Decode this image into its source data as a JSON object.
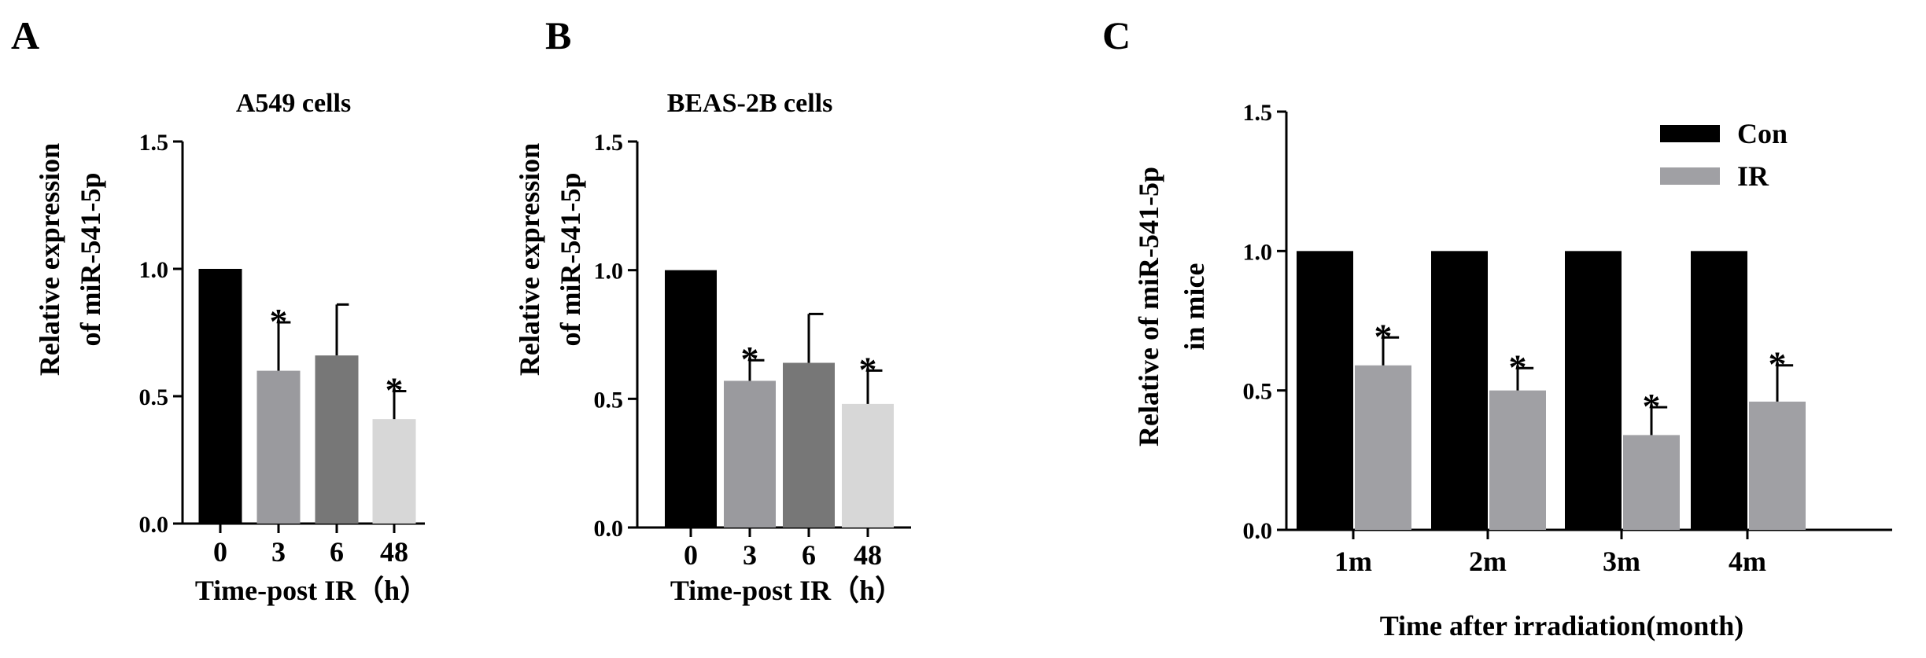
{
  "panels": [
    {
      "letter": "A"
    },
    {
      "letter": "B"
    },
    {
      "letter": "C"
    }
  ],
  "chart_data": [
    {
      "type": "bar",
      "title": "A549 cells",
      "xlabel": "Time-post IR（h）",
      "ylabel_lines": [
        "Relative expression",
        "of miR-541-5p"
      ],
      "categories": [
        "0",
        "3",
        "6",
        "48"
      ],
      "values": [
        1.0,
        0.6,
        0.66,
        0.41
      ],
      "errors": [
        0,
        0.19,
        0.2,
        0.11
      ],
      "significant": [
        false,
        true,
        false,
        true
      ],
      "significance_symbol": "*",
      "bar_colors": [
        "#000000",
        "#9a9a9e",
        "#777777",
        "#d7d7d7"
      ],
      "ylim": [
        0,
        1.5
      ],
      "yticks": [
        0.0,
        0.5,
        1.0,
        1.5
      ],
      "ytick_labels": [
        "0.0",
        "0.5",
        "1.0",
        "1.5"
      ]
    },
    {
      "type": "bar",
      "title": "BEAS-2B cells",
      "xlabel": "Time-post IR（h）",
      "ylabel_lines": [
        "Relative expression",
        "of miR-541-5p"
      ],
      "categories": [
        "0",
        "3",
        "6",
        "48"
      ],
      "values": [
        1.0,
        0.57,
        0.64,
        0.48
      ],
      "errors": [
        0,
        0.08,
        0.19,
        0.13
      ],
      "significant": [
        false,
        true,
        false,
        true
      ],
      "significance_symbol": "*",
      "bar_colors": [
        "#000000",
        "#9a9a9e",
        "#777777",
        "#d7d7d7"
      ],
      "ylim": [
        0,
        1.5
      ],
      "yticks": [
        0.0,
        0.5,
        1.0,
        1.5
      ],
      "ytick_labels": [
        "0.0",
        "0.5",
        "1.0",
        "1.5"
      ]
    },
    {
      "type": "bar",
      "title": "",
      "xlabel": "Time after irradiation(month)",
      "ylabel_lines": [
        "Relative of miR-541-5p",
        "in mice"
      ],
      "categories": [
        "1m",
        "2m",
        "3m",
        "4m"
      ],
      "series": [
        {
          "name": "Con",
          "color": "#000000",
          "values": [
            1.0,
            1.0,
            1.0,
            1.0
          ],
          "errors": [
            0,
            0,
            0,
            0
          ],
          "significant": [
            false,
            false,
            false,
            false
          ]
        },
        {
          "name": "IR",
          "color": "#a0a0a4",
          "values": [
            0.59,
            0.5,
            0.34,
            0.46
          ],
          "errors": [
            0.1,
            0.08,
            0.1,
            0.13
          ],
          "significant": [
            true,
            true,
            true,
            true
          ]
        }
      ],
      "significance_symbol": "*",
      "legend_position": "top-right",
      "ylim": [
        0,
        1.5
      ],
      "yticks": [
        0.0,
        0.5,
        1.0,
        1.5
      ],
      "ytick_labels": [
        "0.0",
        "0.5",
        "1.0",
        "1.5"
      ]
    }
  ]
}
